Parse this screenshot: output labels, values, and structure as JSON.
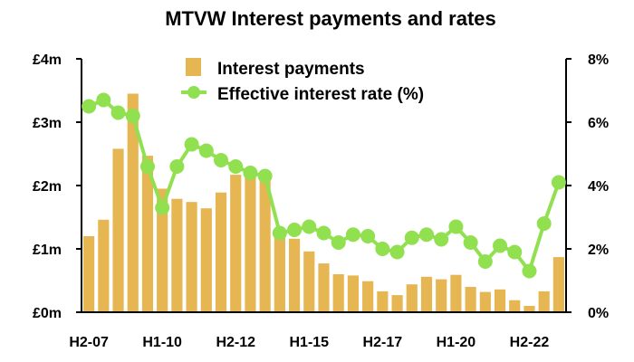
{
  "chart_data": {
    "type": "bar+line",
    "title": "MTVW Interest payments and rates",
    "xlabel": "",
    "x_tick_labels": [
      "H2-07",
      "H1-10",
      "H2-12",
      "H1-15",
      "H2-17",
      "H1-20",
      "H2-22"
    ],
    "categories": [
      "H2-07",
      "H1-08",
      "H2-08",
      "H1-09",
      "H2-09",
      "H1-10",
      "H2-10",
      "H1-11",
      "H2-11",
      "H1-12",
      "H2-12",
      "H1-13",
      "H2-13",
      "H1-14",
      "H2-14",
      "H1-15",
      "H2-15",
      "H1-16",
      "H2-16",
      "H1-17",
      "H2-17",
      "H1-18",
      "H2-18",
      "H1-19",
      "H2-19",
      "H1-20",
      "H2-20",
      "H1-21",
      "H2-21",
      "H1-22",
      "H2-22",
      "H1-23",
      "H2-23"
    ],
    "y_left": {
      "label": "",
      "unit": "£m",
      "ylim": [
        0,
        4
      ],
      "ticks": [
        "£0m",
        "£1m",
        "£2m",
        "£3m",
        "£4m"
      ]
    },
    "y_right": {
      "label": "",
      "unit": "%",
      "ylim": [
        0,
        8
      ],
      "ticks": [
        "0%",
        "2%",
        "4%",
        "6%",
        "8%"
      ]
    },
    "legend_position": "top-center",
    "grid": false,
    "series": [
      {
        "name": "Interest payments",
        "type": "bar",
        "axis": "left",
        "color": "#E5B652",
        "values": [
          1.2,
          1.46,
          2.58,
          3.45,
          2.47,
          1.95,
          1.79,
          1.74,
          1.64,
          1.89,
          2.17,
          2.2,
          2.14,
          1.32,
          1.16,
          0.96,
          0.77,
          0.6,
          0.58,
          0.49,
          0.33,
          0.27,
          0.44,
          0.56,
          0.52,
          0.59,
          0.4,
          0.32,
          0.36,
          0.19,
          0.1,
          0.33,
          0.87
        ]
      },
      {
        "name": "Effective interest rate (%)",
        "type": "line",
        "axis": "right",
        "color": "#90E050",
        "values": [
          6.5,
          6.7,
          6.3,
          6.2,
          4.6,
          3.3,
          4.6,
          5.3,
          5.1,
          4.8,
          4.6,
          4.4,
          4.3,
          2.5,
          2.6,
          2.7,
          2.5,
          2.2,
          2.45,
          2.4,
          2.0,
          1.9,
          2.35,
          2.45,
          2.3,
          2.7,
          2.2,
          1.6,
          2.1,
          1.9,
          1.3,
          2.8,
          4.1
        ]
      }
    ]
  }
}
